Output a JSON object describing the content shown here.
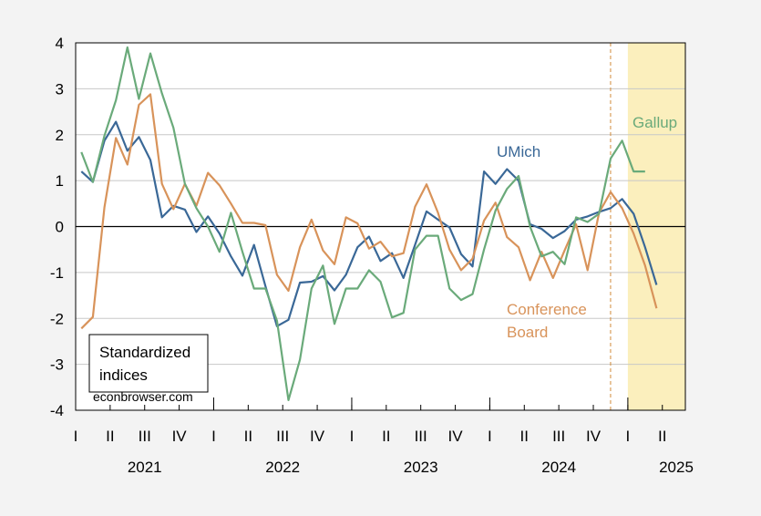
{
  "chart_data": {
    "type": "line",
    "title": "",
    "xlabel": "",
    "ylabel": "",
    "ylim": [
      -4,
      4
    ],
    "y_ticks": [
      4,
      3,
      2,
      1,
      0,
      -1,
      -2,
      -3,
      -4
    ],
    "y_tick_labels": [
      "4",
      "3",
      "2",
      "1",
      "0",
      "-1",
      "-2",
      "-3",
      "-4"
    ],
    "x_start": "2021-01",
    "x_months": 53,
    "quarter_tick_labels": [
      "I",
      "II",
      "III",
      "IV",
      "I",
      "II",
      "III",
      "IV",
      "I",
      "II",
      "III",
      "IV",
      "I",
      "II",
      "III",
      "IV",
      "I",
      "II"
    ],
    "year_labels": [
      "2021",
      "2022",
      "2023",
      "2024",
      "2025"
    ],
    "grid": true,
    "zero_line": true,
    "annotation_box": {
      "lines": [
        "Standardized",
        "indices"
      ]
    },
    "source_text": "econbrowser.com",
    "dashed_vline_month": "2024-11",
    "shaded_region": {
      "start": "2025-01",
      "end": "2025-05",
      "color": "#fbefbd"
    },
    "series": [
      {
        "name": "UMich",
        "label_lines": [
          "UMich"
        ],
        "color": "#3a6897",
        "months": [
          "2021-01",
          "2021-02",
          "2021-03",
          "2021-04",
          "2021-05",
          "2021-06",
          "2021-07",
          "2021-08",
          "2021-09",
          "2021-10",
          "2021-11",
          "2021-12",
          "2022-01",
          "2022-02",
          "2022-03",
          "2022-04",
          "2022-05",
          "2022-06",
          "2022-07",
          "2022-08",
          "2022-09",
          "2022-10",
          "2022-11",
          "2022-12",
          "2023-01",
          "2023-02",
          "2023-03",
          "2023-04",
          "2023-05",
          "2023-06",
          "2023-07",
          "2023-08",
          "2023-09",
          "2023-10",
          "2023-11",
          "2023-12",
          "2024-01",
          "2024-02",
          "2024-03",
          "2024-04",
          "2024-05",
          "2024-06",
          "2024-07",
          "2024-08",
          "2024-09",
          "2024-10",
          "2024-11",
          "2024-12",
          "2025-01",
          "2025-02",
          "2025-03"
        ],
        "values": [
          1.2,
          0.97,
          1.87,
          2.28,
          1.65,
          1.95,
          1.45,
          0.2,
          0.45,
          0.37,
          -0.12,
          0.22,
          -0.15,
          -0.65,
          -1.07,
          -0.4,
          -1.3,
          -2.17,
          -2.03,
          -1.22,
          -1.2,
          -1.08,
          -1.39,
          -1.05,
          -0.45,
          -0.22,
          -0.75,
          -0.58,
          -1.12,
          -0.4,
          0.33,
          0.15,
          -0.02,
          -0.6,
          -0.87,
          1.2,
          0.93,
          1.25,
          1.0,
          0.05,
          -0.05,
          -0.25,
          -0.1,
          0.15,
          0.22,
          0.32,
          0.4,
          0.6,
          0.28,
          -0.45,
          -1.27
        ]
      },
      {
        "name": "Conference Board",
        "label_lines": [
          "Conference",
          "Board"
        ],
        "color": "#d8935a",
        "months": [
          "2021-01",
          "2021-02",
          "2021-03",
          "2021-04",
          "2021-05",
          "2021-06",
          "2021-07",
          "2021-08",
          "2021-09",
          "2021-10",
          "2021-11",
          "2021-12",
          "2022-01",
          "2022-02",
          "2022-03",
          "2022-04",
          "2022-05",
          "2022-06",
          "2022-07",
          "2022-08",
          "2022-09",
          "2022-10",
          "2022-11",
          "2022-12",
          "2023-01",
          "2023-02",
          "2023-03",
          "2023-04",
          "2023-05",
          "2023-06",
          "2023-07",
          "2023-08",
          "2023-09",
          "2023-10",
          "2023-11",
          "2023-12",
          "2024-01",
          "2024-02",
          "2024-03",
          "2024-04",
          "2024-05",
          "2024-06",
          "2024-07",
          "2024-08",
          "2024-09",
          "2024-10",
          "2024-11",
          "2024-12",
          "2025-01",
          "2025-02",
          "2025-03"
        ],
        "values": [
          -2.22,
          -1.97,
          0.42,
          1.93,
          1.35,
          2.65,
          2.88,
          0.93,
          0.38,
          0.93,
          0.45,
          1.17,
          0.9,
          0.5,
          0.08,
          0.08,
          0.03,
          -1.05,
          -1.4,
          -0.45,
          0.15,
          -0.52,
          -0.82,
          0.2,
          0.07,
          -0.48,
          -0.33,
          -0.65,
          -0.58,
          0.43,
          0.92,
          0.3,
          -0.5,
          -0.95,
          -0.7,
          0.13,
          0.52,
          -0.23,
          -0.45,
          -1.17,
          -0.55,
          -1.12,
          -0.52,
          0.05,
          -0.95,
          0.3,
          0.75,
          0.4,
          -0.15,
          -0.85,
          -1.78
        ]
      },
      {
        "name": "Gallup",
        "label_lines": [
          "Gallup"
        ],
        "color": "#6aaa7a",
        "months": [
          "2021-01",
          "2021-02",
          "2021-03",
          "2021-04",
          "2021-05",
          "2021-06",
          "2021-07",
          "2021-08",
          "2021-09",
          "2021-10",
          "2021-11",
          "2021-12",
          "2022-01",
          "2022-02",
          "2022-03",
          "2022-04",
          "2022-05",
          "2022-06",
          "2022-07",
          "2022-08",
          "2022-09",
          "2022-10",
          "2022-11",
          "2022-12",
          "2023-01",
          "2023-02",
          "2023-03",
          "2023-04",
          "2023-05",
          "2023-06",
          "2023-07",
          "2023-08",
          "2023-09",
          "2023-10",
          "2023-11",
          "2023-12",
          "2024-01",
          "2024-02",
          "2024-03",
          "2024-04",
          "2024-05",
          "2024-06",
          "2024-07",
          "2024-08",
          "2024-09",
          "2024-10",
          "2024-11",
          "2024-12",
          "2025-01",
          "2025-02"
        ],
        "values": [
          1.62,
          0.97,
          1.98,
          2.75,
          3.9,
          2.78,
          3.77,
          2.9,
          2.15,
          0.93,
          0.4,
          0.0,
          -0.55,
          0.3,
          -0.55,
          -1.35,
          -1.35,
          -2.05,
          -3.78,
          -2.9,
          -1.35,
          -0.85,
          -2.12,
          -1.35,
          -1.35,
          -0.95,
          -1.2,
          -1.98,
          -1.88,
          -0.5,
          -0.2,
          -0.2,
          -1.35,
          -1.6,
          -1.47,
          -0.5,
          0.35,
          0.82,
          1.1,
          0.0,
          -0.65,
          -0.55,
          -0.82,
          0.2,
          0.1,
          0.28,
          1.48,
          1.87,
          1.2,
          1.2
        ]
      }
    ]
  }
}
